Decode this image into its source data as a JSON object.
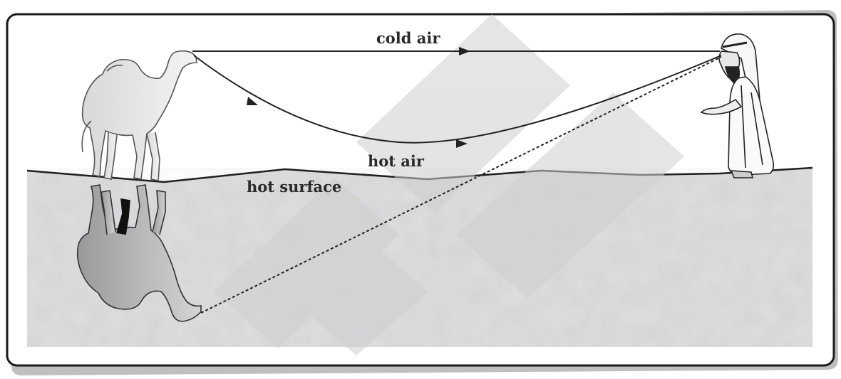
{
  "labels": {
    "cold_air": "cold air",
    "hot_air": "hot air",
    "hot_surface": "hot surface"
  },
  "figures": {
    "camel": "camel-icon",
    "camel_mirage": "camel-reflection-icon",
    "observer": "observer-icon"
  },
  "colors": {
    "frame_border": "#1a1a1a",
    "frame_shadow": "#8a8a8a",
    "ground": "#d5d5d8",
    "ground_texture": "#bdbdc2",
    "ray": "#222222",
    "watermark": "#cfcfcf"
  }
}
